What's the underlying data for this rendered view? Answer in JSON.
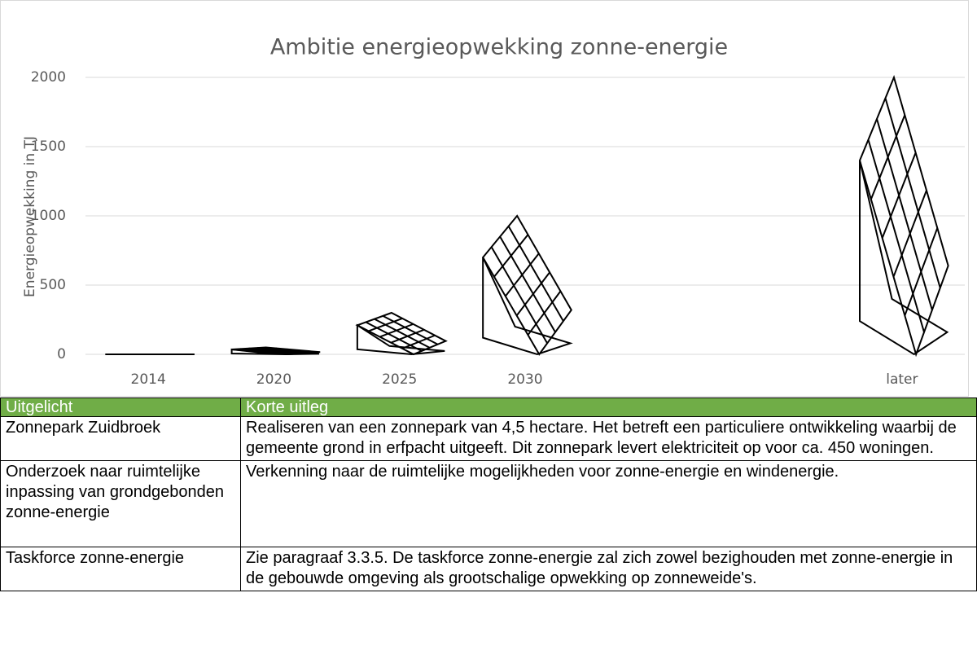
{
  "chart_data": {
    "type": "pictograph",
    "title": "Ambitie energieopwekking zonne-energie",
    "y_label": "Energieopwekking in TJ",
    "categories": [
      "2014",
      "2020",
      "2025",
      "2030",
      null,
      null,
      "later"
    ],
    "values": [
      0,
      50,
      300,
      1000,
      null,
      null,
      2000
    ],
    "ylim": [
      0,
      2000
    ],
    "yticks": [
      0,
      500,
      1000,
      1500,
      2000
    ],
    "grid": true,
    "color": "#000000"
  },
  "table": {
    "header": [
      "Uitgelicht",
      "Korte uitleg"
    ],
    "rows": [
      [
        "Zonnepark Zuidbroek",
        "Realiseren van een zonnepark van 4,5 hectare. Het betreft een particuliere ontwikkeling waarbij de gemeente grond in erfpacht uitgeeft. Dit zonnepark levert elektriciteit op voor ca. 450 woningen."
      ],
      [
        "Onderzoek naar ruimtelijke inpassing van grondgebonden zonne-energie",
        "Verkenning naar de ruimtelijke mogelijkheden voor zonne-energie en windenergie."
      ],
      [
        "Taskforce zonne-energie",
        "Zie paragraaf 3.3.5. De taskforce zonne-energie zal zich zowel bezighouden met zonne-energie in de gebouwde omgeving als grootschalige opwekking op zonneweide's."
      ]
    ]
  }
}
